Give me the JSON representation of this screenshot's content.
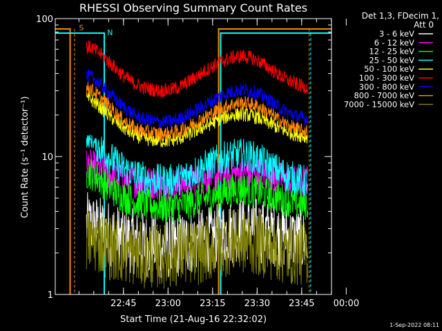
{
  "chart_data": {
    "type": "line",
    "title": "RHESSI Observing Summary Count Rates",
    "xlabel": "Start Time (21-Aug-16 22:32:02)",
    "ylabel": "Count Rate (s⁻¹ detector⁻¹)",
    "yscale": "log",
    "ylim": [
      1,
      100
    ],
    "xlim_minutes": [
      -10,
      83
    ],
    "x_ticks": [
      "22:45",
      "23:00",
      "23:15",
      "23:30",
      "23:45",
      "00:00"
    ],
    "y_ticks": [
      "1",
      "10",
      "100"
    ],
    "legend_header": [
      "Det 1,3, FDecim 1,",
      "Att 0"
    ],
    "legend_position": "right",
    "footer_date": "1-Sep-2022 08:11",
    "flag_labels": {
      "saa": "S",
      "night": "N"
    },
    "series": [
      {
        "name": "3 - 6 keV",
        "color": "#ffffff",
        "x": [
          2,
          5,
          8,
          11,
          14,
          17,
          20,
          23,
          26,
          29,
          32,
          35,
          38,
          41,
          44,
          47,
          50,
          53,
          56,
          59,
          62,
          65,
          68,
          71,
          74
        ],
        "values": [
          3.2,
          3.0,
          2.8,
          2.6,
          2.5,
          2.4,
          2.3,
          2.3,
          2.2,
          2.2,
          2.3,
          2.4,
          2.4,
          2.5,
          2.6,
          2.8,
          2.9,
          3.0,
          3.0,
          2.9,
          2.8,
          2.7,
          2.6,
          2.5,
          2.4
        ]
      },
      {
        "name": "6 - 12 keV",
        "color": "#ff00ff",
        "x": [
          2,
          5,
          8,
          11,
          14,
          17,
          20,
          23,
          26,
          29,
          32,
          35,
          38,
          41,
          44,
          47,
          50,
          53,
          56,
          59,
          62,
          65,
          68,
          71,
          74
        ],
        "values": [
          8.6,
          8.0,
          7.5,
          7.1,
          6.8,
          6.6,
          6.5,
          6.4,
          6.3,
          6.3,
          6.4,
          6.6,
          6.8,
          7.0,
          7.2,
          7.3,
          7.5,
          7.6,
          7.6,
          7.5,
          7.3,
          7.0,
          6.8,
          6.6,
          6.5
        ]
      },
      {
        "name": "12 - 25 keV",
        "color": "#00ff00",
        "x": [
          2,
          5,
          8,
          11,
          14,
          17,
          20,
          23,
          26,
          29,
          32,
          35,
          38,
          41,
          44,
          47,
          50,
          53,
          56,
          59,
          62,
          65,
          68,
          71,
          74
        ],
        "values": [
          7.6,
          6.8,
          6.0,
          5.4,
          5.0,
          4.7,
          4.5,
          4.4,
          4.3,
          4.3,
          4.4,
          4.6,
          4.8,
          5.0,
          5.3,
          5.5,
          5.7,
          5.8,
          5.7,
          5.5,
          5.3,
          5.0,
          4.8,
          4.6,
          4.5
        ]
      },
      {
        "name": "25 - 50 keV",
        "color": "#00ffff",
        "x": [
          2,
          5,
          8,
          11,
          14,
          17,
          20,
          23,
          26,
          29,
          32,
          35,
          38,
          41,
          44,
          47,
          50,
          53,
          56,
          59,
          62,
          65,
          68,
          71,
          74
        ],
        "values": [
          13.0,
          11.5,
          10.0,
          8.8,
          8.0,
          7.4,
          7.0,
          6.8,
          6.7,
          6.7,
          6.9,
          7.4,
          8.0,
          8.6,
          9.2,
          9.8,
          10.2,
          10.3,
          10.0,
          9.4,
          8.6,
          7.9,
          7.3,
          6.9,
          6.6
        ]
      },
      {
        "name": "50 - 100 keV",
        "color": "#ffff00",
        "x": [
          2,
          5,
          8,
          11,
          14,
          17,
          20,
          23,
          26,
          29,
          32,
          35,
          38,
          41,
          44,
          47,
          50,
          53,
          56,
          59,
          62,
          65,
          68,
          71,
          74
        ],
        "values": [
          26.0,
          23.0,
          20.0,
          17.5,
          15.5,
          14.2,
          13.5,
          13.2,
          13.0,
          13.1,
          13.6,
          14.5,
          15.6,
          16.8,
          18.0,
          19.2,
          20.0,
          20.3,
          19.8,
          18.8,
          17.5,
          16.2,
          15.2,
          14.5,
          14.0
        ]
      },
      {
        "name": "100 - 300 keV",
        "color": "#ff0000",
        "x": [
          2,
          5,
          8,
          11,
          14,
          17,
          20,
          23,
          26,
          29,
          32,
          35,
          38,
          41,
          44,
          47,
          50,
          53,
          56,
          59,
          62,
          65,
          68,
          71,
          74
        ],
        "values": [
          62.0,
          56.0,
          49.0,
          42.0,
          37.0,
          33.5,
          31.5,
          30.5,
          30.0,
          30.5,
          32.0,
          35.0,
          38.5,
          42.5,
          46.5,
          50.0,
          52.5,
          53.5,
          52.0,
          48.5,
          44.0,
          39.5,
          36.0,
          33.5,
          32.0
        ]
      },
      {
        "name": "300 - 800 keV",
        "color": "#0000ff",
        "x": [
          2,
          5,
          8,
          11,
          14,
          17,
          20,
          23,
          26,
          29,
          32,
          35,
          38,
          41,
          44,
          47,
          50,
          53,
          56,
          59,
          62,
          65,
          68,
          71,
          74
        ],
        "values": [
          38.0,
          33.5,
          29.0,
          25.0,
          22.0,
          19.8,
          18.5,
          18.0,
          17.8,
          18.0,
          18.8,
          20.2,
          22.0,
          24.0,
          26.2,
          28.2,
          29.8,
          30.5,
          29.8,
          28.0,
          25.5,
          23.0,
          21.0,
          19.6,
          18.8
        ]
      },
      {
        "name": "800 - 7000 keV",
        "color": "#ff8800",
        "x": [
          2,
          5,
          8,
          11,
          14,
          17,
          20,
          23,
          26,
          29,
          32,
          35,
          38,
          41,
          44,
          47,
          50,
          53,
          56,
          59,
          62,
          65,
          68,
          71,
          74
        ],
        "values": [
          31.0,
          27.0,
          23.5,
          20.0,
          17.6,
          16.0,
          15.2,
          14.8,
          14.6,
          14.8,
          15.4,
          16.6,
          18.0,
          19.6,
          21.2,
          22.8,
          24.0,
          24.5,
          24.0,
          22.6,
          20.6,
          18.6,
          17.0,
          15.9,
          15.2
        ]
      },
      {
        "name": "7000 - 15000 keV",
        "color": "#808000",
        "x": [
          2,
          5,
          8,
          11,
          14,
          17,
          20,
          23,
          26,
          29,
          32,
          35,
          38,
          41,
          44,
          47,
          50,
          53,
          56,
          59,
          62,
          65,
          68,
          71,
          74
        ],
        "values": [
          2.5,
          2.4,
          2.2,
          2.1,
          2.0,
          2.0,
          1.9,
          1.9,
          1.9,
          1.9,
          2.0,
          2.0,
          2.0,
          2.1,
          2.2,
          2.3,
          2.4,
          2.4,
          2.4,
          2.3,
          2.2,
          2.1,
          2.0,
          2.0,
          2.0
        ]
      }
    ]
  }
}
